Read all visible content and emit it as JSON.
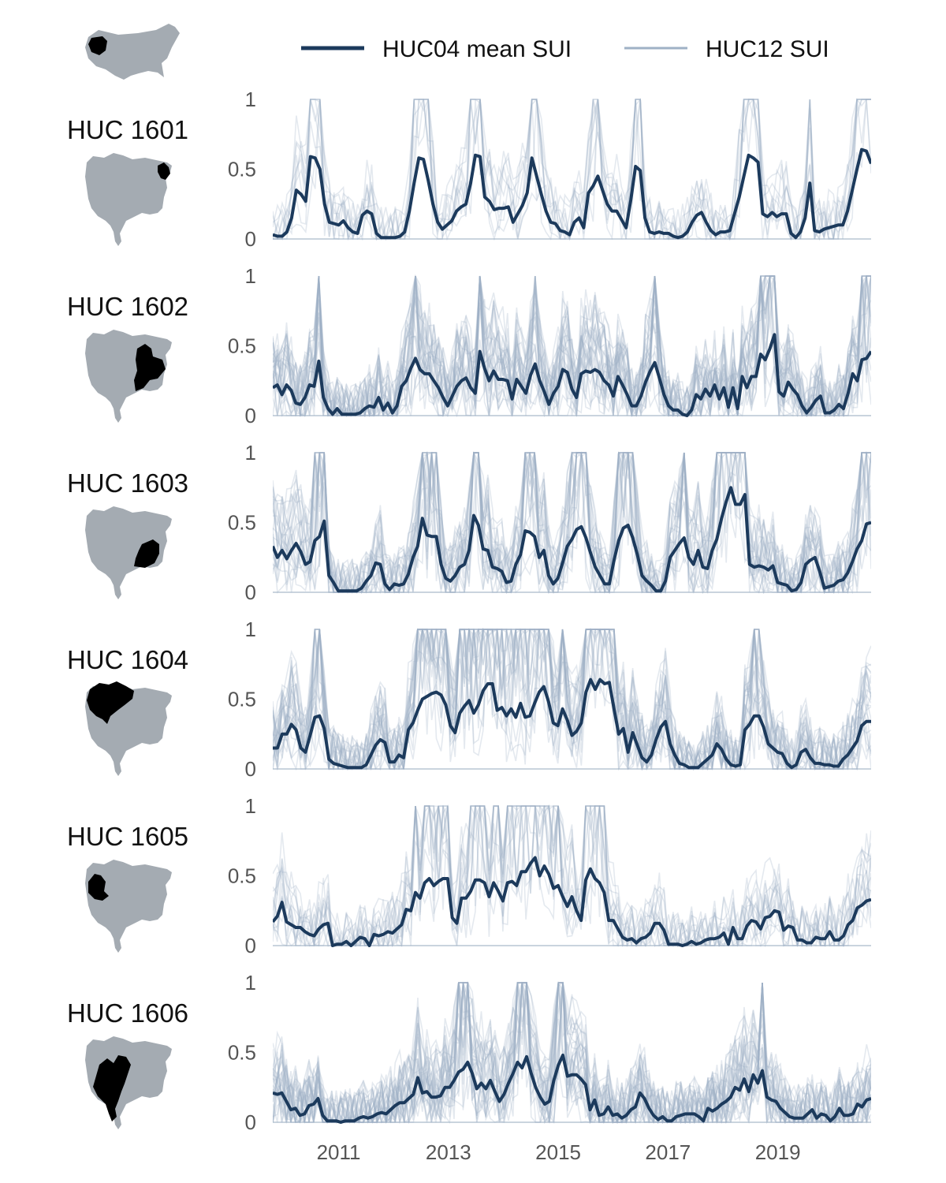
{
  "colors": {
    "mean": "#1c3a5c",
    "huc12": "#9fb1c5",
    "map_gray": "#a4abb2",
    "highlight": "#000000",
    "axis": "#b8c5d3"
  },
  "legend": {
    "mean_label": "HUC04 mean SUI",
    "huc12_label": "HUC12 SUI"
  },
  "icons": {
    "us_map": "us-map-icon",
    "region_map": "region-map-icon"
  },
  "chart_data": {
    "type": "line",
    "xlabel": "",
    "ylabel": "",
    "x_start": 2009.8,
    "x_end": 2020.7,
    "x_ticks": [
      "2011",
      "2013",
      "2015",
      "2017",
      "2019"
    ],
    "ylim": [
      0,
      1
    ],
    "y_ticks": [
      "0",
      "0.5",
      "1"
    ],
    "grid": false,
    "legend_position": "top",
    "series": [
      {
        "name": "HUC04 mean SUI"
      },
      {
        "name": "HUC12 SUI"
      }
    ],
    "panels": [
      {
        "title": "HUC 1601",
        "mean": [
          0.03,
          0.02,
          0.02,
          0.05,
          0.15,
          0.35,
          0.32,
          0.27,
          0.59,
          0.58,
          0.5,
          0.25,
          0.12,
          0.11,
          0.1,
          0.13,
          0.08,
          0.05,
          0.04,
          0.17,
          0.2,
          0.18,
          0.04,
          0.01,
          0.01,
          0.01,
          0.01,
          0.02,
          0.05,
          0.2,
          0.4,
          0.58,
          0.57,
          0.42,
          0.25,
          0.12,
          0.07,
          0.1,
          0.13,
          0.2,
          0.23,
          0.25,
          0.4,
          0.6,
          0.59,
          0.3,
          0.27,
          0.21,
          0.22,
          0.22,
          0.23,
          0.12,
          0.18,
          0.24,
          0.33,
          0.58,
          0.45,
          0.32,
          0.2,
          0.12,
          0.11,
          0.06,
          0.05,
          0.03,
          0.12,
          0.15,
          0.08,
          0.33,
          0.38,
          0.45,
          0.35,
          0.25,
          0.2,
          0.2,
          0.14,
          0.08,
          0.28,
          0.52,
          0.49,
          0.15,
          0.05,
          0.04,
          0.05,
          0.04,
          0.04,
          0.02,
          0.01,
          0.02,
          0.05,
          0.12,
          0.17,
          0.19,
          0.12,
          0.06,
          0.03,
          0.05,
          0.05,
          0.06,
          0.18,
          0.3,
          0.45,
          0.6,
          0.58,
          0.55,
          0.18,
          0.16,
          0.19,
          0.16,
          0.18,
          0.18,
          0.04,
          0.01,
          0.05,
          0.15,
          0.4,
          0.06,
          0.05,
          0.07,
          0.08,
          0.09,
          0.1,
          0.1,
          0.2,
          0.35,
          0.5,
          0.64,
          0.63,
          0.54
        ]
      },
      {
        "title": "HUC 1602",
        "mean": [
          0.2,
          0.22,
          0.15,
          0.22,
          0.18,
          0.09,
          0.08,
          0.13,
          0.22,
          0.21,
          0.39,
          0.13,
          0.05,
          0.01,
          0.05,
          0.01,
          0.01,
          0.01,
          0.01,
          0.02,
          0.05,
          0.07,
          0.06,
          0.13,
          0.04,
          0.09,
          0.02,
          0.07,
          0.21,
          0.25,
          0.34,
          0.41,
          0.33,
          0.3,
          0.3,
          0.25,
          0.2,
          0.13,
          0.07,
          0.14,
          0.21,
          0.25,
          0.27,
          0.2,
          0.16,
          0.46,
          0.34,
          0.25,
          0.32,
          0.26,
          0.26,
          0.25,
          0.12,
          0.26,
          0.21,
          0.16,
          0.29,
          0.37,
          0.25,
          0.17,
          0.08,
          0.16,
          0.21,
          0.33,
          0.31,
          0.19,
          0.13,
          0.3,
          0.32,
          0.31,
          0.33,
          0.31,
          0.25,
          0.22,
          0.14,
          0.28,
          0.22,
          0.15,
          0.07,
          0.07,
          0.14,
          0.24,
          0.32,
          0.38,
          0.27,
          0.15,
          0.07,
          0.04,
          0.04,
          0.01,
          0.0,
          0.04,
          0.15,
          0.12,
          0.19,
          0.14,
          0.22,
          0.12,
          0.2,
          0.06,
          0.2,
          0.05,
          0.28,
          0.2,
          0.28,
          0.28,
          0.44,
          0.4,
          0.48,
          0.58,
          0.17,
          0.14,
          0.24,
          0.19,
          0.15,
          0.07,
          0.02,
          0.06,
          0.11,
          0.14,
          0.02,
          0.02,
          0.04,
          0.08,
          0.05,
          0.16,
          0.3,
          0.25,
          0.4,
          0.41,
          0.46
        ]
      },
      {
        "title": "HUC 1603",
        "mean": [
          0.33,
          0.25,
          0.3,
          0.24,
          0.3,
          0.35,
          0.29,
          0.2,
          0.22,
          0.37,
          0.4,
          0.51,
          0.12,
          0.07,
          0.01,
          0.01,
          0.01,
          0.01,
          0.01,
          0.03,
          0.08,
          0.12,
          0.21,
          0.2,
          0.06,
          0.02,
          0.06,
          0.05,
          0.06,
          0.13,
          0.25,
          0.33,
          0.53,
          0.41,
          0.4,
          0.4,
          0.2,
          0.1,
          0.08,
          0.12,
          0.18,
          0.2,
          0.3,
          0.55,
          0.48,
          0.31,
          0.3,
          0.18,
          0.17,
          0.15,
          0.07,
          0.08,
          0.2,
          0.27,
          0.44,
          0.43,
          0.4,
          0.25,
          0.3,
          0.12,
          0.06,
          0.1,
          0.21,
          0.33,
          0.38,
          0.45,
          0.47,
          0.39,
          0.28,
          0.18,
          0.12,
          0.06,
          0.06,
          0.23,
          0.37,
          0.46,
          0.48,
          0.39,
          0.27,
          0.12,
          0.08,
          0.05,
          0.01,
          0.01,
          0.08,
          0.25,
          0.3,
          0.35,
          0.39,
          0.25,
          0.2,
          0.3,
          0.18,
          0.17,
          0.3,
          0.38,
          0.53,
          0.65,
          0.75,
          0.63,
          0.63,
          0.7,
          0.2,
          0.18,
          0.19,
          0.18,
          0.16,
          0.19,
          0.07,
          0.06,
          0.05,
          0.01,
          0.02,
          0.07,
          0.2,
          0.23,
          0.25,
          0.15,
          0.03,
          0.04,
          0.05,
          0.08,
          0.09,
          0.14,
          0.22,
          0.31,
          0.37,
          0.49,
          0.5
        ]
      },
      {
        "title": "HUC 1604",
        "mean": [
          0.15,
          0.15,
          0.25,
          0.25,
          0.32,
          0.28,
          0.15,
          0.12,
          0.24,
          0.37,
          0.38,
          0.29,
          0.07,
          0.04,
          0.03,
          0.02,
          0.01,
          0.01,
          0.01,
          0.01,
          0.03,
          0.1,
          0.17,
          0.21,
          0.19,
          0.05,
          0.05,
          0.1,
          0.08,
          0.28,
          0.33,
          0.42,
          0.5,
          0.52,
          0.54,
          0.55,
          0.53,
          0.46,
          0.31,
          0.26,
          0.4,
          0.45,
          0.49,
          0.4,
          0.46,
          0.56,
          0.61,
          0.61,
          0.42,
          0.44,
          0.38,
          0.43,
          0.37,
          0.47,
          0.37,
          0.38,
          0.47,
          0.55,
          0.59,
          0.48,
          0.33,
          0.31,
          0.43,
          0.35,
          0.24,
          0.27,
          0.33,
          0.55,
          0.64,
          0.57,
          0.64,
          0.61,
          0.62,
          0.43,
          0.25,
          0.29,
          0.12,
          0.26,
          0.17,
          0.08,
          0.05,
          0.1,
          0.21,
          0.3,
          0.34,
          0.18,
          0.1,
          0.04,
          0.03,
          0.01,
          0.01,
          0.01,
          0.04,
          0.07,
          0.1,
          0.18,
          0.14,
          0.07,
          0.03,
          0.02,
          0.03,
          0.28,
          0.32,
          0.38,
          0.38,
          0.3,
          0.18,
          0.15,
          0.12,
          0.11,
          0.04,
          0.01,
          0.03,
          0.12,
          0.14,
          0.08,
          0.04,
          0.04,
          0.03,
          0.03,
          0.02,
          0.02,
          0.07,
          0.1,
          0.15,
          0.2,
          0.31,
          0.34,
          0.34
        ]
      },
      {
        "title": "HUC 1605",
        "mean": [
          0.17,
          0.21,
          0.31,
          0.17,
          0.15,
          0.13,
          0.13,
          0.1,
          0.08,
          0.07,
          0.12,
          0.15,
          0.16,
          0.0,
          0.01,
          0.01,
          0.03,
          0.0,
          0.03,
          0.06,
          0.05,
          0.0,
          0.08,
          0.07,
          0.08,
          0.1,
          0.09,
          0.12,
          0.15,
          0.26,
          0.25,
          0.38,
          0.34,
          0.45,
          0.48,
          0.43,
          0.46,
          0.48,
          0.48,
          0.2,
          0.16,
          0.34,
          0.34,
          0.39,
          0.47,
          0.47,
          0.45,
          0.35,
          0.45,
          0.39,
          0.32,
          0.45,
          0.46,
          0.43,
          0.53,
          0.53,
          0.59,
          0.63,
          0.5,
          0.57,
          0.51,
          0.41,
          0.43,
          0.35,
          0.28,
          0.35,
          0.25,
          0.18,
          0.47,
          0.55,
          0.48,
          0.45,
          0.38,
          0.18,
          0.18,
          0.12,
          0.06,
          0.04,
          0.05,
          0.02,
          0.05,
          0.06,
          0.09,
          0.16,
          0.16,
          0.11,
          0.01,
          0.01,
          0.01,
          0.0,
          0.01,
          0.03,
          0.01,
          0.02,
          0.04,
          0.05,
          0.05,
          0.06,
          0.09,
          0.01,
          0.13,
          0.05,
          0.05,
          0.14,
          0.18,
          0.17,
          0.12,
          0.2,
          0.21,
          0.25,
          0.24,
          0.11,
          0.14,
          0.13,
          0.04,
          0.04,
          0.02,
          0.02,
          0.06,
          0.05,
          0.05,
          0.1,
          0.04,
          0.04,
          0.07,
          0.15,
          0.18,
          0.27,
          0.29,
          0.32,
          0.33
        ]
      },
      {
        "title": "HUC 1606",
        "mean": [
          0.21,
          0.2,
          0.21,
          0.15,
          0.09,
          0.1,
          0.05,
          0.06,
          0.12,
          0.13,
          0.17,
          0.05,
          0.01,
          0.01,
          0.01,
          0.0,
          0.01,
          0.01,
          0.01,
          0.03,
          0.04,
          0.03,
          0.04,
          0.06,
          0.07,
          0.06,
          0.09,
          0.12,
          0.14,
          0.14,
          0.17,
          0.2,
          0.32,
          0.21,
          0.22,
          0.18,
          0.18,
          0.19,
          0.25,
          0.25,
          0.3,
          0.36,
          0.38,
          0.43,
          0.35,
          0.24,
          0.28,
          0.24,
          0.3,
          0.22,
          0.15,
          0.2,
          0.28,
          0.35,
          0.43,
          0.39,
          0.47,
          0.35,
          0.25,
          0.18,
          0.13,
          0.15,
          0.3,
          0.41,
          0.48,
          0.33,
          0.34,
          0.34,
          0.31,
          0.27,
          0.09,
          0.16,
          0.05,
          0.06,
          0.11,
          0.05,
          0.06,
          0.03,
          0.05,
          0.09,
          0.11,
          0.21,
          0.17,
          0.1,
          0.05,
          0.02,
          0.04,
          0.01,
          0.01,
          0.04,
          0.05,
          0.06,
          0.06,
          0.06,
          0.04,
          0.01,
          0.1,
          0.08,
          0.1,
          0.13,
          0.15,
          0.18,
          0.25,
          0.23,
          0.31,
          0.22,
          0.34,
          0.28,
          0.37,
          0.18,
          0.16,
          0.15,
          0.1,
          0.07,
          0.04,
          0.03,
          0.03,
          0.03,
          0.06,
          0.09,
          0.03,
          0.06,
          0.05,
          0.01,
          0.04,
          0.1,
          0.05,
          0.05,
          0.06,
          0.13,
          0.11,
          0.16,
          0.17
        ]
      }
    ]
  }
}
